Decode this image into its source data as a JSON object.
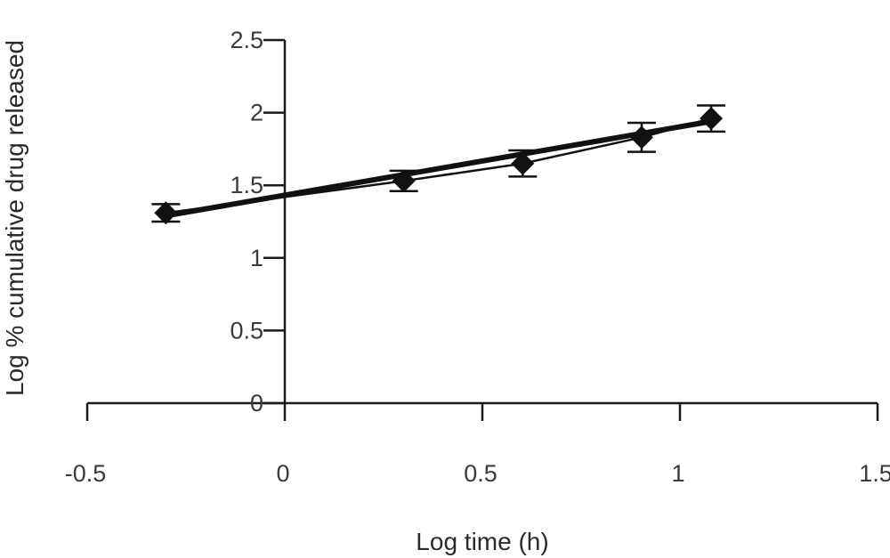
{
  "chart_data": {
    "type": "scatter",
    "title": "",
    "xlabel": "Log time (h)",
    "ylabel": "Log % cumulative drug released",
    "xlim": [
      -0.5,
      1.5
    ],
    "ylim": [
      0,
      2.5
    ],
    "x_ticks": [
      -0.5,
      0,
      0.5,
      1,
      1.5
    ],
    "y_ticks": [
      0,
      0.5,
      1,
      1.5,
      2,
      2.5
    ],
    "x_tick_labels": [
      "-0.5",
      "0",
      "0.5",
      "1",
      "1.5"
    ],
    "y_tick_labels": [
      "0",
      "0.5",
      "1",
      "1.5",
      "2",
      "2.5"
    ],
    "grid": false,
    "series": [
      {
        "marker": "diamond",
        "x": [
          -0.301,
          0.301,
          0.602,
          0.903,
          1.079
        ],
        "y": [
          1.31,
          1.53,
          1.65,
          1.83,
          1.96
        ],
        "error": [
          0.06,
          0.07,
          0.09,
          0.1,
          0.09
        ]
      }
    ],
    "trendline": {
      "x": [
        -0.301,
        1.079
      ],
      "y": [
        1.29,
        1.94
      ]
    }
  }
}
